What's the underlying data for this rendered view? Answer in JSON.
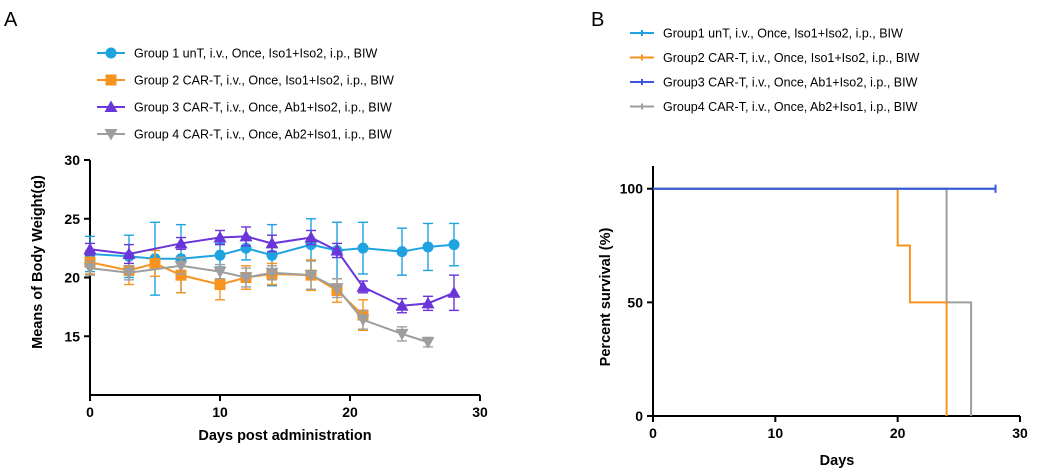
{
  "panel_labels": [
    "A",
    "B"
  ],
  "chart_data": [
    {
      "type": "line",
      "panel": "A",
      "title": "",
      "xlabel": "Days post administration",
      "ylabel": "Means of Body Weight(g)",
      "xlim": [
        0,
        30
      ],
      "ylim": [
        10,
        30
      ],
      "xticks": [
        0,
        10,
        20,
        30
      ],
      "yticks": [
        15,
        20,
        25,
        30
      ],
      "legend_position": "top",
      "grid": false,
      "series": [
        {
          "name": "Group 1 unT, i.v., Once, Iso1+Iso2, i.p., BIW",
          "color": "#1fa3e0",
          "marker": "circle",
          "x": [
            0,
            3,
            5,
            7,
            10,
            12,
            14,
            17,
            19,
            21,
            24,
            26,
            28
          ],
          "y": [
            22.0,
            21.8,
            21.6,
            21.6,
            21.9,
            22.5,
            21.9,
            22.8,
            22.3,
            22.5,
            22.2,
            22.6,
            22.8
          ],
          "error": [
            1.5,
            1.8,
            3.1,
            2.9,
            1.0,
            1.0,
            2.6,
            2.2,
            2.4,
            2.2,
            2.0,
            2.0,
            1.8
          ]
        },
        {
          "name": "Group 2 CAR-T, i.v., Once, Iso1+Iso2, i.p., BIW",
          "color": "#f7931e",
          "marker": "square",
          "x": [
            0,
            3,
            5,
            7,
            10,
            12,
            14,
            17,
            19,
            21
          ],
          "y": [
            21.3,
            20.6,
            21.2,
            20.2,
            19.4,
            20.0,
            20.3,
            20.2,
            18.9,
            16.8
          ],
          "error": [
            1.0,
            1.2,
            1.1,
            1.5,
            1.3,
            1.0,
            0.9,
            1.3,
            1.0,
            1.3
          ]
        },
        {
          "name": "Group 3 CAR-T, i.v., Once, Ab1+Iso2,  i.p., BIW",
          "color": "#6a35d9",
          "marker": "triangle",
          "x": [
            0,
            3,
            7,
            10,
            12,
            14,
            17,
            19,
            21,
            24,
            26,
            28
          ],
          "y": [
            22.4,
            22.0,
            22.9,
            23.4,
            23.5,
            22.9,
            23.4,
            22.3,
            19.2,
            17.6,
            17.8,
            18.7
          ],
          "error": [
            0.5,
            0.8,
            0.5,
            0.6,
            0.8,
            0.7,
            0.6,
            0.6,
            0.5,
            0.6,
            0.6,
            1.5
          ]
        },
        {
          "name": "Group 4 CAR-T, i.v., Once, Ab2+Iso1, i.p., BIW",
          "color": "#9e9e9e",
          "marker": "triangle-down",
          "x": [
            0,
            3,
            7,
            10,
            12,
            14,
            17,
            19,
            21,
            24,
            26
          ],
          "y": [
            20.8,
            20.4,
            21.0,
            20.5,
            20.0,
            20.4,
            20.2,
            19.1,
            16.4,
            15.2,
            14.5
          ],
          "error": [
            0.6,
            0.6,
            0.7,
            0.6,
            0.8,
            0.6,
            1.2,
            0.8,
            0.8,
            0.6,
            0.4
          ]
        }
      ]
    },
    {
      "type": "line",
      "panel": "B",
      "title": "",
      "xlabel": "Days",
      "ylabel": "Percent survival (%)",
      "xlim": [
        0,
        30
      ],
      "ylim": [
        0,
        110
      ],
      "xticks": [
        0,
        10,
        20,
        30
      ],
      "yticks": [
        0,
        50,
        100
      ],
      "legend_position": "top",
      "grid": false,
      "series": [
        {
          "name": "Group1 unT, i.v., Once, Iso1+Iso2, i.p., BIW",
          "color": "#1fa3e0",
          "steps": [
            [
              0,
              100
            ],
            [
              28,
              100
            ]
          ]
        },
        {
          "name": "Group2 CAR-T, i.v., Once, Iso1+Iso2, i.p., BIW",
          "color": "#f7931e",
          "steps": [
            [
              0,
              100
            ],
            [
              20,
              75
            ],
            [
              21,
              50
            ],
            [
              24,
              0
            ]
          ]
        },
        {
          "name": "Group3 CAR-T, i.v., Once, Ab1+Iso2, i.p., BIW",
          "color": "#3b57d6",
          "steps": [
            [
              0,
              100
            ],
            [
              28,
              100
            ]
          ]
        },
        {
          "name": "Group4 CAR-T, i.v., Once, Ab2+Iso1, i.p., BIW",
          "color": "#9e9e9e",
          "steps": [
            [
              0,
              100
            ],
            [
              24,
              50
            ],
            [
              26,
              0
            ]
          ]
        }
      ]
    }
  ]
}
